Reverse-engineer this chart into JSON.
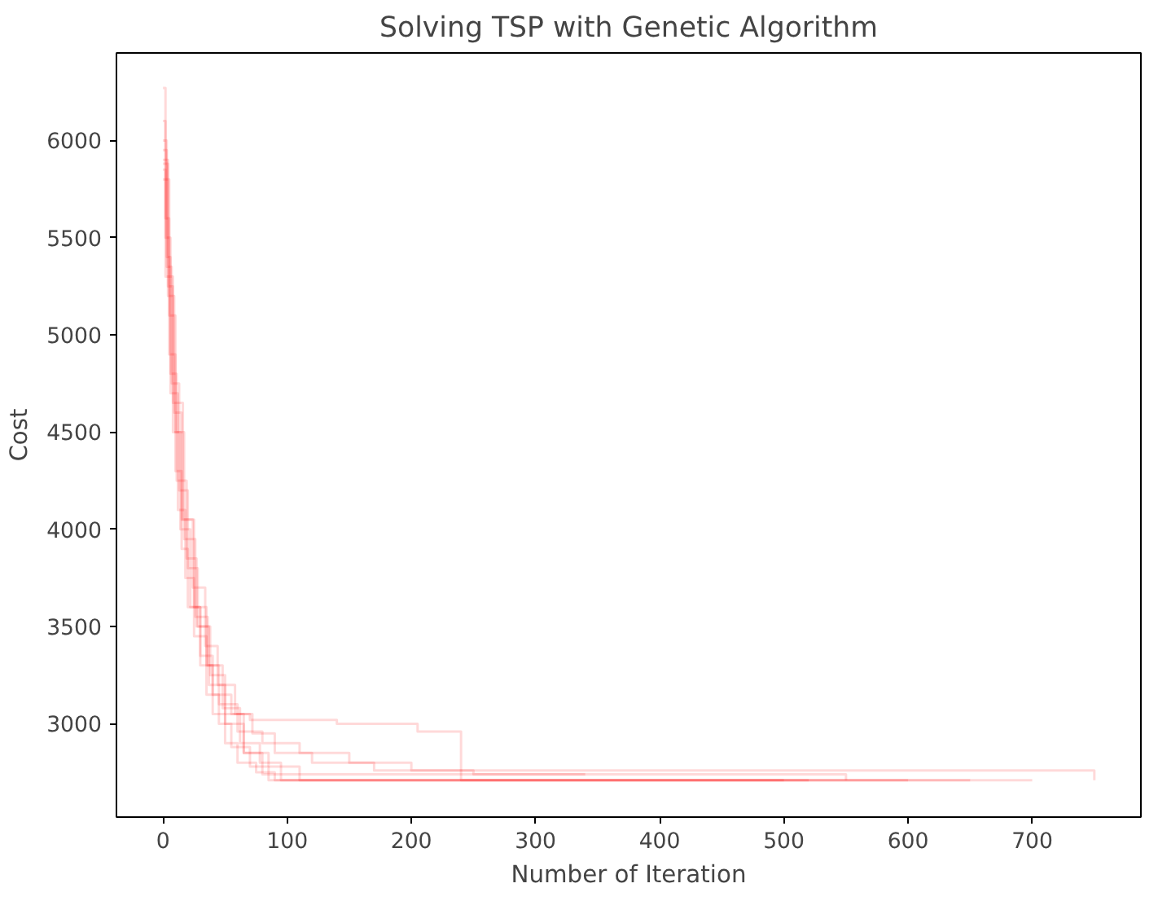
{
  "chart_data": {
    "type": "step",
    "title": "Solving TSP with Genetic Algorithm",
    "xlabel": "Number of Iteration",
    "ylabel": "Cost",
    "xlim": [
      -37.5,
      787.5
    ],
    "ylim": [
      2520,
      6450
    ],
    "xticks": [
      0,
      100,
      200,
      300,
      400,
      500,
      600,
      700
    ],
    "yticks": [
      3000,
      3500,
      4000,
      4500,
      5000,
      5500,
      6000
    ],
    "grid": false,
    "series": [
      {
        "color": "#ff0000",
        "x": [
          0,
          2,
          5,
          10,
          15,
          20,
          30,
          40,
          50,
          60,
          75,
          90,
          520
        ],
        "values": [
          6270,
          5600,
          4900,
          4300,
          3900,
          3600,
          3300,
          3050,
          2900,
          2800,
          2750,
          2710,
          2710
        ]
      },
      {
        "color": "#ff0000",
        "x": [
          0,
          3,
          6,
          12,
          18,
          25,
          35,
          45,
          55,
          70,
          85,
          600
        ],
        "values": [
          6000,
          5400,
          4700,
          4100,
          3750,
          3450,
          3150,
          3000,
          2880,
          2780,
          2710,
          2710
        ]
      },
      {
        "color": "#ff0000",
        "x": [
          0,
          2,
          8,
          14,
          22,
          30,
          40,
          55,
          70,
          140,
          205,
          240,
          650
        ],
        "values": [
          5850,
          5300,
          4500,
          4000,
          3600,
          3350,
          3150,
          3050,
          3020,
          3000,
          2960,
          2710,
          2710
        ]
      },
      {
        "color": "#ff0000",
        "x": [
          0,
          4,
          9,
          15,
          25,
          35,
          45,
          60,
          80,
          110,
          150,
          200,
          750
        ],
        "values": [
          5900,
          5200,
          4600,
          4050,
          3600,
          3300,
          3100,
          2960,
          2900,
          2850,
          2800,
          2760,
          2710
        ]
      },
      {
        "color": "#ff0000",
        "x": [
          0,
          3,
          7,
          13,
          20,
          28,
          38,
          50,
          65,
          80,
          340
        ],
        "values": [
          5950,
          5350,
          4750,
          4200,
          3800,
          3500,
          3250,
          3050,
          2850,
          2740,
          2740
        ]
      },
      {
        "color": "#ff0000",
        "x": [
          0,
          5,
          10,
          17,
          26,
          36,
          48,
          62,
          78,
          95,
          700
        ],
        "values": [
          5800,
          5100,
          4500,
          3950,
          3550,
          3300,
          3080,
          2900,
          2800,
          2710,
          2710
        ]
      },
      {
        "color": "#ff0000",
        "x": [
          0,
          2,
          6,
          11,
          19,
          27,
          37,
          50,
          65,
          85,
          110,
          500
        ],
        "values": [
          6100,
          5500,
          4800,
          4250,
          3850,
          3500,
          3200,
          3000,
          2850,
          2780,
          2710,
          2710
        ]
      },
      {
        "color": "#ff0000",
        "x": [
          0,
          4,
          8,
          16,
          24,
          34,
          44,
          58,
          72,
          90,
          120,
          170,
          250,
          550
        ],
        "values": [
          5880,
          5250,
          4650,
          4050,
          3700,
          3400,
          3200,
          3050,
          2950,
          2850,
          2800,
          2760,
          2740,
          2710
        ]
      }
    ]
  }
}
